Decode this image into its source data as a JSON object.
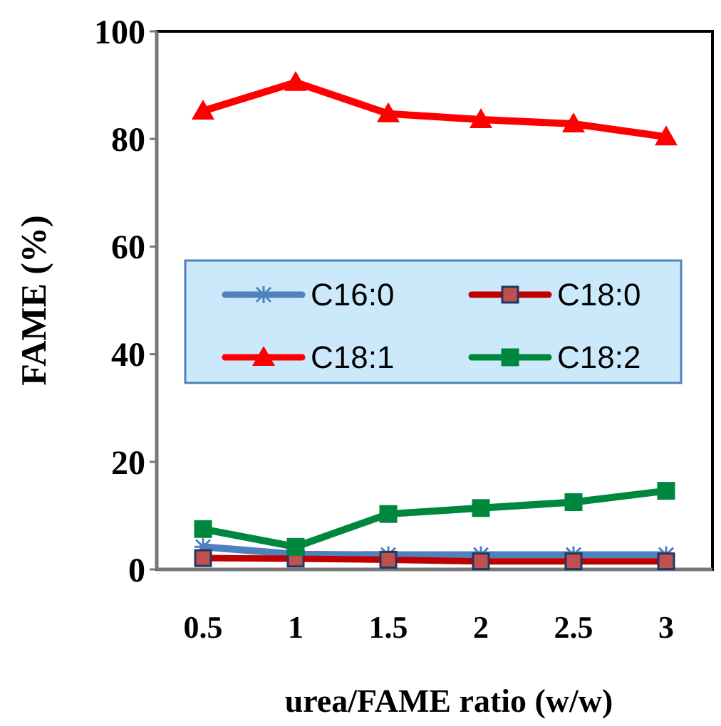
{
  "chart_data": {
    "type": "line",
    "xlabel": "urea/FAME ratio (w/w)",
    "ylabel": "FAME (%)",
    "categories": [
      "0.5",
      "1",
      "1.5",
      "2",
      "2.5",
      "3"
    ],
    "ylim": [
      0,
      100
    ],
    "yticks": [
      0,
      20,
      40,
      60,
      80,
      100
    ],
    "grid": false,
    "legend": "center",
    "series": [
      {
        "name": "C16:0",
        "color": "#4f81bd",
        "marker": "cross",
        "values": [
          4.2,
          2.8,
          2.7,
          2.7,
          2.7,
          2.7
        ]
      },
      {
        "name": "C18:0",
        "color": "#c00000",
        "marker": "square",
        "values": [
          2.1,
          2,
          1.8,
          1.5,
          1.5,
          1.5
        ]
      },
      {
        "name": "C18:1",
        "color": "#ff0000",
        "marker": "triangle",
        "values": [
          85.2,
          90.5,
          84.7,
          83.6,
          82.8,
          80.4
        ]
      },
      {
        "name": "C18:2",
        "color": "#00873e",
        "marker": "square",
        "values": [
          7.5,
          4.2,
          10.3,
          11.4,
          12.5,
          14.6
        ]
      }
    ]
  }
}
